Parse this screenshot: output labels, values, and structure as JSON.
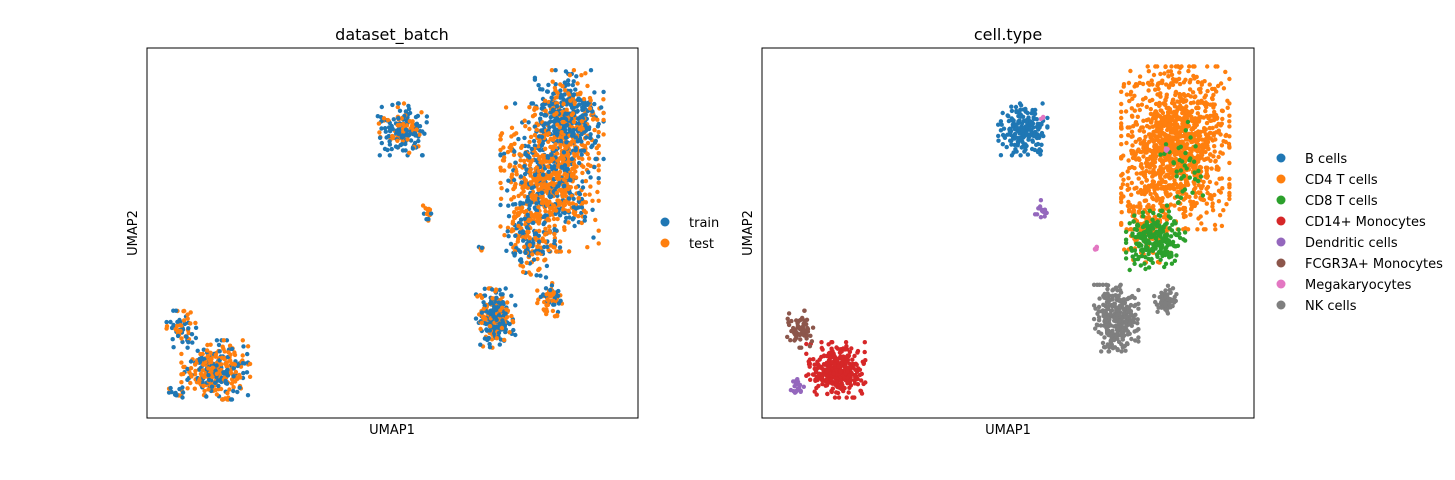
{
  "chart_data": [
    {
      "type": "scatter",
      "title": "dataset_batch",
      "xlabel": "UMAP1",
      "ylabel": "UMAP2",
      "xticks": "none",
      "yticks": "none",
      "grid": false,
      "legend_position": "right",
      "legend": [
        {
          "label": "train",
          "color": "#1f77b4"
        },
        {
          "label": "test",
          "color": "#ff7f0e"
        }
      ],
      "clusters": [
        {
          "cx": 0.82,
          "cy": 0.35,
          "rx": 0.1,
          "ry": 0.2,
          "n": 900,
          "mix": [
            0.35,
            0.65
          ]
        },
        {
          "cx": 0.86,
          "cy": 0.18,
          "rx": 0.07,
          "ry": 0.12,
          "n": 350,
          "mix": [
            0.6,
            0.4
          ]
        },
        {
          "cx": 0.78,
          "cy": 0.52,
          "rx": 0.05,
          "ry": 0.1,
          "n": 150,
          "mix": [
            0.4,
            0.6
          ]
        },
        {
          "cx": 0.52,
          "cy": 0.22,
          "rx": 0.05,
          "ry": 0.07,
          "n": 180,
          "mix": [
            0.7,
            0.3
          ]
        },
        {
          "cx": 0.71,
          "cy": 0.73,
          "rx": 0.04,
          "ry": 0.08,
          "n": 260,
          "mix": [
            0.6,
            0.4
          ]
        },
        {
          "cx": 0.82,
          "cy": 0.68,
          "rx": 0.025,
          "ry": 0.045,
          "n": 60,
          "mix": [
            0.4,
            0.6
          ]
        },
        {
          "cx": 0.14,
          "cy": 0.87,
          "rx": 0.07,
          "ry": 0.08,
          "n": 330,
          "mix": [
            0.45,
            0.55
          ]
        },
        {
          "cx": 0.07,
          "cy": 0.76,
          "rx": 0.03,
          "ry": 0.05,
          "n": 60,
          "mix": [
            0.6,
            0.4
          ]
        },
        {
          "cx": 0.06,
          "cy": 0.93,
          "rx": 0.015,
          "ry": 0.02,
          "n": 15,
          "mix": [
            0.6,
            0.4
          ]
        },
        {
          "cx": 0.57,
          "cy": 0.44,
          "rx": 0.015,
          "ry": 0.03,
          "n": 15,
          "mix": [
            0.2,
            0.8
          ]
        },
        {
          "cx": 0.68,
          "cy": 0.54,
          "rx": 0.005,
          "ry": 0.01,
          "n": 5,
          "mix": [
            0.2,
            0.8
          ]
        }
      ]
    },
    {
      "type": "scatter",
      "title": "cell.type",
      "xlabel": "UMAP1",
      "ylabel": "UMAP2",
      "xticks": "none",
      "yticks": "none",
      "grid": false,
      "legend_position": "right",
      "legend": [
        {
          "label": "B cells",
          "color": "#1f77b4"
        },
        {
          "label": "CD4 T cells",
          "color": "#ff7f0e"
        },
        {
          "label": "CD8 T cells",
          "color": "#2ca02c"
        },
        {
          "label": "CD14+ Monocytes",
          "color": "#d62728"
        },
        {
          "label": "Dendritic cells",
          "color": "#9467bd"
        },
        {
          "label": "FCGR3A+ Monocytes",
          "color": "#8c564b"
        },
        {
          "label": "Megakaryocytes",
          "color": "#e377c2"
        },
        {
          "label": "NK cells",
          "color": "#7f7f7f"
        }
      ],
      "clusters": [
        {
          "cx": 0.84,
          "cy": 0.27,
          "rx": 0.11,
          "ry": 0.22,
          "n": 1200,
          "cat": 1
        },
        {
          "cx": 0.78,
          "cy": 0.48,
          "rx": 0.05,
          "ry": 0.1,
          "n": 140,
          "cat": 1
        },
        {
          "cx": 0.8,
          "cy": 0.52,
          "rx": 0.06,
          "ry": 0.08,
          "n": 220,
          "cat": 2
        },
        {
          "cx": 0.86,
          "cy": 0.32,
          "rx": 0.05,
          "ry": 0.12,
          "n": 40,
          "cat": 2
        },
        {
          "cx": 0.53,
          "cy": 0.22,
          "rx": 0.05,
          "ry": 0.07,
          "n": 200,
          "cat": 0
        },
        {
          "cx": 0.72,
          "cy": 0.73,
          "rx": 0.045,
          "ry": 0.09,
          "n": 280,
          "cat": 7
        },
        {
          "cx": 0.82,
          "cy": 0.68,
          "rx": 0.025,
          "ry": 0.04,
          "n": 70,
          "cat": 7
        },
        {
          "cx": 0.15,
          "cy": 0.87,
          "rx": 0.06,
          "ry": 0.075,
          "n": 330,
          "cat": 3
        },
        {
          "cx": 0.08,
          "cy": 0.76,
          "rx": 0.03,
          "ry": 0.05,
          "n": 70,
          "cat": 5
        },
        {
          "cx": 0.07,
          "cy": 0.92,
          "rx": 0.015,
          "ry": 0.025,
          "n": 18,
          "cat": 4
        },
        {
          "cx": 0.57,
          "cy": 0.44,
          "rx": 0.015,
          "ry": 0.03,
          "n": 16,
          "cat": 4
        },
        {
          "cx": 0.68,
          "cy": 0.54,
          "rx": 0.004,
          "ry": 0.01,
          "n": 6,
          "cat": 6
        },
        {
          "cx": 0.57,
          "cy": 0.19,
          "rx": 0.004,
          "ry": 0.006,
          "n": 3,
          "cat": 6
        },
        {
          "cx": 0.82,
          "cy": 0.27,
          "rx": 0.006,
          "ry": 0.01,
          "n": 4,
          "cat": 6
        }
      ]
    }
  ]
}
